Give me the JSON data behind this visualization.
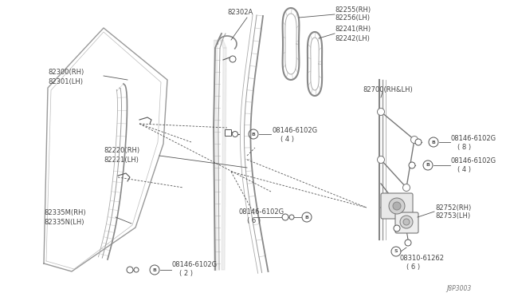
{
  "bg_color": "#ffffff",
  "line_color": "#888888",
  "dark_line": "#555555",
  "text_color": "#444444",
  "font_size": 6.0,
  "ref_text": "J8P3003",
  "parts": {
    "glass": "82300/82301",
    "sash_top": "82302A",
    "weatherstrip1": "82255/82256",
    "weatherstrip2": "82241/82242",
    "door_run": "82220/82221",
    "bottom_strip": "82335M/82335N",
    "regulator": "82700",
    "bracket": "82752/82753"
  }
}
